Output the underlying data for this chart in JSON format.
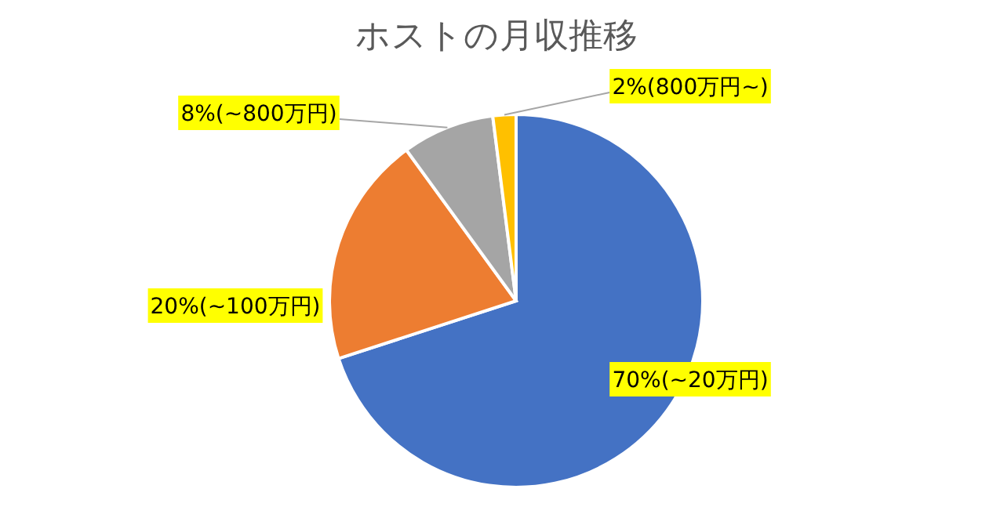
{
  "chart_data": {
    "type": "pie",
    "title": "ホストの月収推移",
    "categories": [
      "(~20万円)",
      "(~100万円)",
      "(~800万円)",
      "(800万円~)"
    ],
    "values": [
      70,
      20,
      8,
      2
    ],
    "colors": [
      "#4472c4",
      "#ed7d31",
      "#a5a5a5",
      "#ffc000"
    ],
    "value_labels": [
      "70%",
      "20%",
      "8%",
      "2%"
    ]
  }
}
